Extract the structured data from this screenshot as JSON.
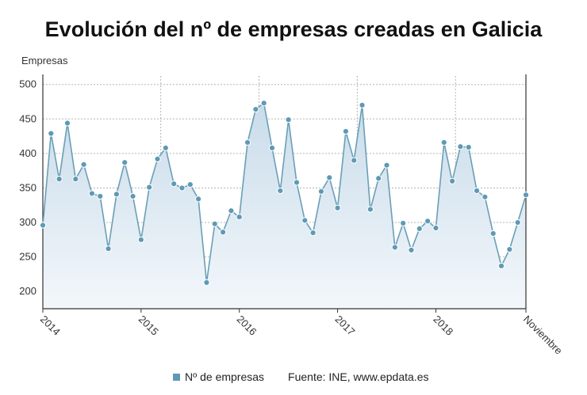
{
  "title": "Evolución del nº de empresas creadas en Galicia",
  "legend": {
    "series_label": "Nº de empresas",
    "source": "Fuente: INE, www.epdata.es"
  },
  "colors": {
    "line": "#6a9fb6",
    "marker_fill": "#5e9ab5",
    "marker_stroke": "#ffffff",
    "area_top": "#c9dcea",
    "area_bottom": "#f3f7fb",
    "grid": "#b5b5b5"
  },
  "chart_data": {
    "type": "area",
    "title": "Evolución del nº de empresas creadas en Galicia",
    "ylabel": "Empresas",
    "ylim": [
      175,
      510
    ],
    "yticks": [
      200,
      250,
      300,
      350,
      400,
      450,
      500
    ],
    "x_tick_labels": [
      "2014",
      "2015",
      "2016",
      "2017",
      "2018",
      "Noviembre"
    ],
    "x_tick_index": [
      0,
      12,
      24,
      36,
      48,
      59
    ],
    "grid": true,
    "legend_position": "bottom",
    "series": [
      {
        "name": "Nº de empresas",
        "values": [
          296,
          429,
          363,
          444,
          363,
          384,
          342,
          338,
          262,
          341,
          387,
          338,
          275,
          351,
          392,
          408,
          356,
          350,
          355,
          334,
          213,
          298,
          286,
          317,
          308,
          416,
          464,
          473,
          408,
          346,
          449,
          358,
          303,
          285,
          345,
          365,
          321,
          432,
          390,
          470,
          319,
          364,
          383,
          264,
          299,
          260,
          291,
          302,
          292,
          416,
          360,
          410,
          409,
          346,
          337,
          284,
          237,
          261,
          300,
          340
        ]
      }
    ]
  }
}
